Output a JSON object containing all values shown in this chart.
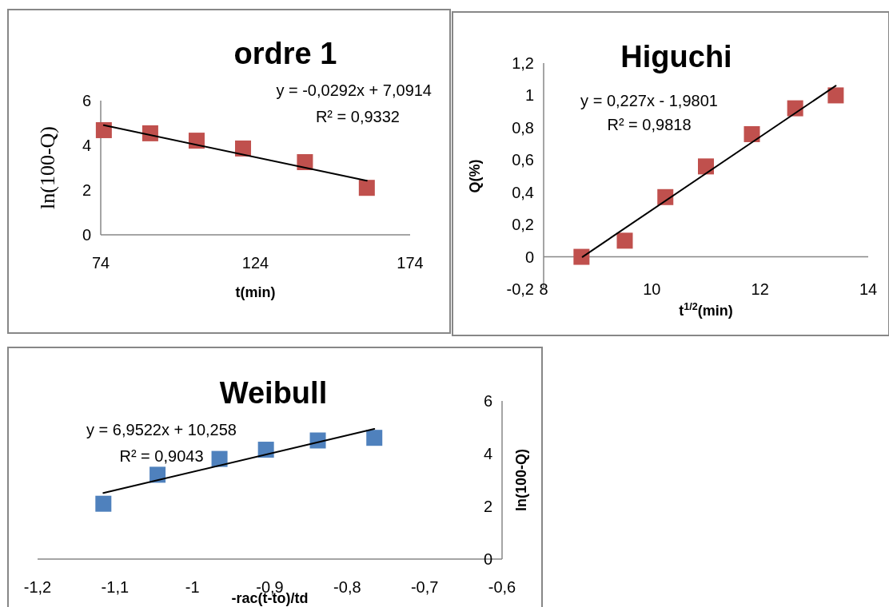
{
  "chart_data": [
    {
      "type": "scatter",
      "title": "ordre 1",
      "xlabel": "t(min)",
      "ylabel": "ln(100-Q)",
      "xlim": [
        74,
        174
      ],
      "xticks": [
        74,
        124,
        174
      ],
      "ylim": [
        0,
        6
      ],
      "yticks": [
        0,
        2,
        4,
        6
      ],
      "marker": "square",
      "series": [
        {
          "color": "#c0504d",
          "x": [
            75,
            90,
            105,
            120,
            140,
            160
          ],
          "values": [
            4.68,
            4.54,
            4.21,
            3.86,
            3.25,
            2.1
          ]
        },
        {
          "type": "line",
          "color": "#000000",
          "marker": "none",
          "x": [
            75,
            160
          ],
          "values": [
            4.9,
            2.42
          ]
        }
      ],
      "annotations": [
        "y = -0,0292x + 7,0914",
        "R² = 0,9332"
      ]
    },
    {
      "type": "scatter",
      "title": "Higuchi",
      "xlabel": "t$^{1/2}$(min)",
      "ylabel": "Q(%)",
      "xlim": [
        8,
        14
      ],
      "xticks": [
        8,
        10,
        12,
        14
      ],
      "ylim": [
        -0.2,
        1.2
      ],
      "yticks": [
        {
          "value": -0.2,
          "label": "-0,2"
        },
        0,
        {
          "value": 0.2,
          "label": "0,2"
        },
        {
          "value": 0.4,
          "label": "0,4"
        },
        {
          "value": 0.6,
          "label": "0,6"
        },
        {
          "value": 0.8,
          "label": "0,8"
        },
        1,
        {
          "value": 1.2,
          "label": "1,2"
        }
      ],
      "marker": "square",
      "series": [
        {
          "color": "#c0504d",
          "x": [
            8.7,
            9.5,
            10.25,
            11,
            11.85,
            12.65,
            13.4
          ],
          "values": [
            0,
            0.1,
            0.37,
            0.56,
            0.76,
            0.92,
            1.0
          ]
        },
        {
          "type": "line",
          "color": "#000000",
          "marker": "none",
          "x": [
            8.72,
            13.4
          ],
          "values": [
            0,
            1.06
          ]
        }
      ],
      "annotations": [
        "y = 0,227x - 1,9801",
        "R² = 0,9818"
      ]
    },
    {
      "type": "scatter",
      "title": "Weibull",
      "xlabel": "-rac(t-to)/td",
      "y2label": "ln(100-Q)",
      "xlim": [
        -1.2,
        -0.6
      ],
      "xticks": [
        {
          "value": -1.2,
          "label": "-1,2"
        },
        {
          "value": -1.1,
          "label": "-1,1"
        },
        -1,
        {
          "value": -0.9,
          "label": "-0,9"
        },
        {
          "value": -0.8,
          "label": "-0,8"
        },
        {
          "value": -0.7,
          "label": "-0,7"
        },
        {
          "value": -0.6,
          "label": "-0,6"
        }
      ],
      "y2lim": [
        0,
        6
      ],
      "y2ticks": [
        0,
        2,
        4,
        6
      ],
      "marker": "square",
      "series": [
        {
          "axis": "y2",
          "color": "#4f81bd",
          "x": [
            -1.115,
            -1.045,
            -0.965,
            -0.905,
            -0.838,
            -0.765
          ],
          "values": [
            2.1,
            3.2,
            3.8,
            4.15,
            4.5,
            4.6
          ]
        },
        {
          "type": "line",
          "axis": "y2",
          "color": "#000000",
          "marker": "none",
          "x": [
            -1.115,
            -0.765
          ],
          "values": [
            2.51,
            4.94
          ]
        }
      ],
      "annotations": [
        "y = 6,9522x + 10,258",
        "R² = 0,9043"
      ]
    }
  ]
}
